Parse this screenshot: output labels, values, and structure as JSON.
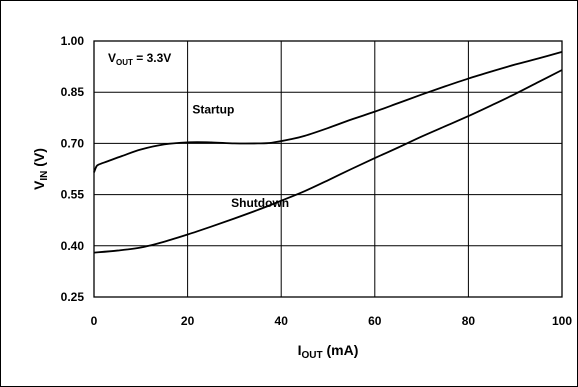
{
  "chart_data": {
    "type": "line",
    "title": "",
    "annotation": {
      "main": "V",
      "sub": "OUT",
      "rest": " = 3.3V"
    },
    "xlabel": {
      "main": "I",
      "sub": "OUT",
      "rest": " (mA)"
    },
    "ylabel": {
      "main": "V",
      "sub": "IN",
      "rest": " (V)"
    },
    "xlim": [
      0,
      100
    ],
    "ylim": [
      0.25,
      1.0
    ],
    "xticks": [
      0,
      20,
      40,
      60,
      80,
      100
    ],
    "xtick_labels": [
      "0",
      "20",
      "40",
      "60",
      "80",
      "100"
    ],
    "yticks": [
      0.25,
      0.4,
      0.55,
      0.7,
      0.85,
      1.0
    ],
    "ytick_labels": [
      "0.25",
      "0.40",
      "0.55",
      "0.70",
      "0.85",
      "1.00"
    ],
    "grid": true,
    "legend": "none",
    "series": [
      {
        "name": "Startup",
        "x": [
          0,
          0.5,
          1,
          3,
          6,
          10,
          15,
          20,
          25,
          30,
          35,
          38,
          42,
          45,
          50,
          55,
          60,
          65,
          70,
          75,
          80,
          85,
          90,
          95,
          100
        ],
        "y": [
          0.615,
          0.632,
          0.638,
          0.648,
          0.663,
          0.682,
          0.697,
          0.703,
          0.703,
          0.7,
          0.7,
          0.702,
          0.712,
          0.722,
          0.745,
          0.77,
          0.793,
          0.818,
          0.843,
          0.867,
          0.89,
          0.911,
          0.931,
          0.949,
          0.968
        ]
      },
      {
        "name": "Shutdown",
        "x": [
          0,
          5,
          10,
          15,
          20,
          25,
          30,
          35,
          40,
          45,
          50,
          55,
          60,
          65,
          70,
          75,
          80,
          85,
          90,
          95,
          100
        ],
        "y": [
          0.38,
          0.386,
          0.395,
          0.412,
          0.433,
          0.456,
          0.48,
          0.505,
          0.532,
          0.56,
          0.592,
          0.625,
          0.657,
          0.688,
          0.72,
          0.75,
          0.78,
          0.812,
          0.845,
          0.88,
          0.915
        ]
      }
    ],
    "curve_labels": [
      {
        "series": "Startup",
        "text": "Startup",
        "x": 25.5,
        "y": 0.787
      },
      {
        "series": "Shutdown",
        "text": "Shutdown",
        "x": 35.5,
        "y": 0.513
      }
    ]
  }
}
